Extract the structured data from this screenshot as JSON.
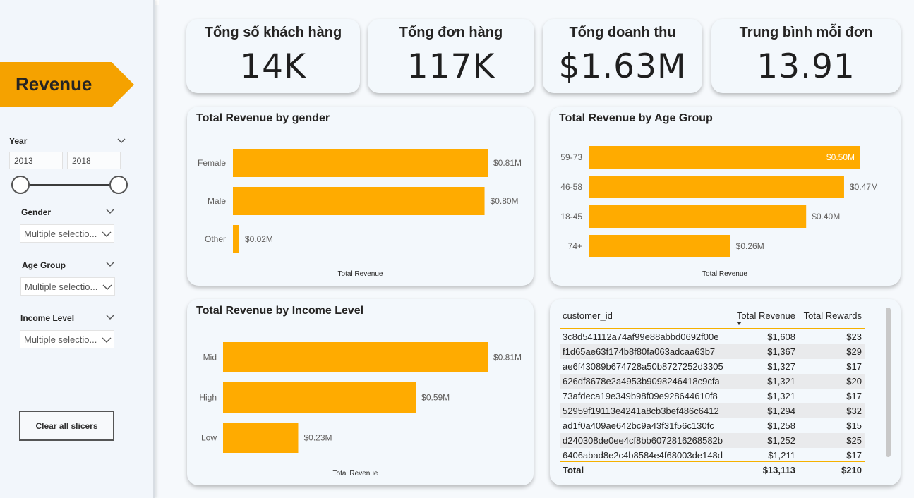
{
  "sidebar": {
    "banner_label": "Revenue",
    "year": {
      "title": "Year",
      "start": "2013",
      "end": "2018"
    },
    "gender": {
      "title": "Gender",
      "value": "Multiple selectio..."
    },
    "age_group": {
      "title": "Age Group",
      "value": "Multiple selectio..."
    },
    "income_level": {
      "title": "Income Level",
      "value": "Multiple selectio..."
    },
    "clear_button": "Clear all slicers"
  },
  "kpis": [
    {
      "title": "Tổng số khách hàng",
      "value": "14K"
    },
    {
      "title": "Tổng đơn hàng",
      "value": "117K"
    },
    {
      "title": "Tổng doanh thu",
      "value": "$1.63M"
    },
    {
      "title": "Trung bình mỗi đơn",
      "value": "13.91"
    }
  ],
  "colors": {
    "bar": "#FFAB00",
    "banner": "#F5A200",
    "accent_line": "#F5B100"
  },
  "chart_data": [
    {
      "type": "bar",
      "title": "Total Revenue by gender",
      "xlabel": "Total Revenue",
      "categories": [
        "Female",
        "Male",
        "Other"
      ],
      "values": [
        0.81,
        0.8,
        0.02
      ],
      "labels": [
        "$0.81M",
        "$0.80M",
        "$0.02M"
      ],
      "xlim": [
        0,
        0.81
      ]
    },
    {
      "type": "bar",
      "title": "Total Revenue by Age Group",
      "xlabel": "Total Revenue",
      "categories": [
        "59-73",
        "46-58",
        "18-45",
        "74+"
      ],
      "values": [
        0.5,
        0.47,
        0.4,
        0.26
      ],
      "labels": [
        "$0.50M",
        "$0.47M",
        "$0.40M",
        "$0.26M"
      ],
      "xlim": [
        0,
        0.5
      ]
    },
    {
      "type": "bar",
      "title": "Total Revenue by Income Level",
      "xlabel": "Total Revenue",
      "categories": [
        "Mid",
        "High",
        "Low"
      ],
      "values": [
        0.81,
        0.59,
        0.23
      ],
      "labels": [
        "$0.81M",
        "$0.59M",
        "$0.23M"
      ],
      "xlim": [
        0,
        0.81
      ]
    }
  ],
  "table": {
    "headers": [
      "customer_id",
      "Total Revenue",
      "Total Rewards"
    ],
    "rows": [
      [
        "3c8d541112a74af99e88abbd0692f00e",
        "$1,608",
        "$23"
      ],
      [
        "f1d65ae63f174b8f80fa063adcaa63b7",
        "$1,367",
        "$29"
      ],
      [
        "ae6f43089b674728a50b8727252d3305",
        "$1,327",
        "$17"
      ],
      [
        "626df8678e2a4953b9098246418c9cfa",
        "$1,321",
        "$20"
      ],
      [
        "73afdeca19e349b98f09e928644610f8",
        "$1,321",
        "$17"
      ],
      [
        "52959f19113e4241a8cb3bef486c6412",
        "$1,294",
        "$32"
      ],
      [
        "ad1f0a409ae642bc9a43f31f56c130fc",
        "$1,258",
        "$15"
      ],
      [
        "d240308de0ee4cf8bb6072816268582b",
        "$1,252",
        "$25"
      ],
      [
        "6406abad8e2c4b8584e4f68003de148d",
        "$1,211",
        "$17"
      ]
    ],
    "total": [
      "Total",
      "$13,113",
      "$210"
    ]
  }
}
